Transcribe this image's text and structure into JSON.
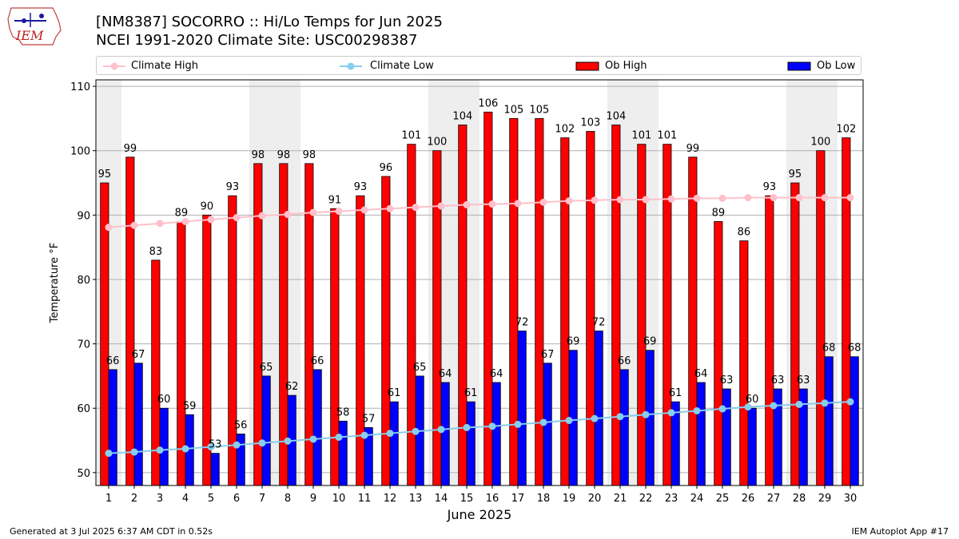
{
  "logo": {
    "text": "IEM"
  },
  "header": {
    "title": "[NM8387] SOCORRO :: Hi/Lo Temps for Jun 2025",
    "subtitle": "NCEI 1991-2020 Climate Site: USC00298387"
  },
  "legend": [
    "Climate High",
    "Climate Low",
    "Ob High",
    "Ob Low"
  ],
  "footer": {
    "left": "Generated at 3 Jul 2025 6:37 AM CDT in 0.52s",
    "right": "IEM Autoplot App #17"
  },
  "colors": {
    "ob_high": "#ff0000",
    "ob_low": "#0000ff",
    "climate_high": "#ffc0cb",
    "climate_low": "#87ceeb",
    "weekend_shade": "#eeeeee"
  },
  "chart_data": {
    "type": "bar",
    "xlabel": "June 2025",
    "ylabel": "Temperature °F",
    "ylim": [
      48,
      111
    ],
    "yticks": [
      50,
      60,
      70,
      80,
      90,
      100,
      110
    ],
    "grid": true,
    "legend_placement": "top",
    "categories": [
      "1",
      "2",
      "3",
      "4",
      "5",
      "6",
      "7",
      "8",
      "9",
      "10",
      "11",
      "12",
      "13",
      "14",
      "15",
      "16",
      "17",
      "18",
      "19",
      "20",
      "21",
      "22",
      "23",
      "24",
      "25",
      "26",
      "27",
      "28",
      "29",
      "30"
    ],
    "shaded_days": [
      1,
      7,
      8,
      14,
      15,
      21,
      22,
      28,
      29
    ],
    "series": [
      {
        "name": "Ob High",
        "kind": "bar",
        "values": [
          95,
          99,
          83,
          89,
          90,
          93,
          98,
          98,
          98,
          91,
          93,
          96,
          101,
          100,
          104,
          106,
          105,
          105,
          102,
          103,
          104,
          101,
          101,
          99,
          89,
          86,
          93,
          95,
          100,
          102
        ]
      },
      {
        "name": "Ob Low",
        "kind": "bar",
        "values": [
          66,
          67,
          60,
          59,
          53,
          56,
          65,
          62,
          66,
          58,
          57,
          61,
          65,
          64,
          61,
          64,
          72,
          67,
          69,
          72,
          66,
          69,
          61,
          64,
          63,
          60,
          63,
          63,
          68,
          68
        ]
      },
      {
        "name": "Climate High",
        "kind": "line",
        "values": [
          88.1,
          88.4,
          88.7,
          89.0,
          89.3,
          89.6,
          89.9,
          90.1,
          90.4,
          90.6,
          90.8,
          91.0,
          91.2,
          91.4,
          91.6,
          91.7,
          91.8,
          92.0,
          92.2,
          92.3,
          92.4,
          92.4,
          92.5,
          92.6,
          92.6,
          92.7,
          92.7,
          92.7,
          92.7,
          92.7
        ]
      },
      {
        "name": "Climate Low",
        "kind": "line",
        "values": [
          53.0,
          53.2,
          53.5,
          53.7,
          54.0,
          54.3,
          54.6,
          54.9,
          55.2,
          55.5,
          55.8,
          56.1,
          56.4,
          56.7,
          57.0,
          57.2,
          57.5,
          57.8,
          58.1,
          58.4,
          58.7,
          59.0,
          59.3,
          59.6,
          59.9,
          60.2,
          60.4,
          60.6,
          60.8,
          61.0
        ]
      }
    ]
  }
}
